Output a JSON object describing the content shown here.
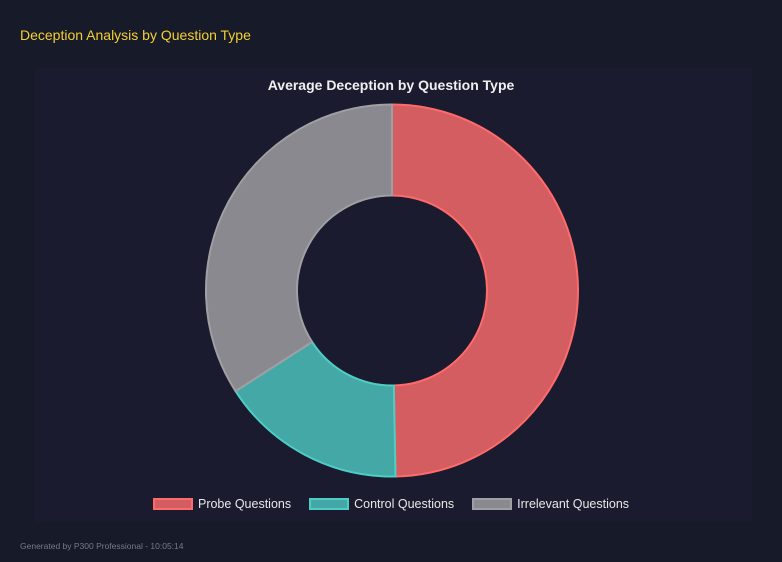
{
  "header": {
    "title": "Deception Analysis by Question Type"
  },
  "footer": {
    "text": "Generated by P300 Professional - 10:05:14"
  },
  "chart_data": {
    "type": "pie",
    "variant": "doughnut",
    "title": "Average Deception by Question Type",
    "categories": [
      "Probe Questions",
      "Control Questions",
      "Irrelevant Questions"
    ],
    "values": [
      49.7,
      16.2,
      34.1
    ],
    "colors": [
      {
        "fill": "#d35d61",
        "border": "#ff6b6b"
      },
      {
        "fill": "#44a8a6",
        "border": "#4ecdc4"
      },
      {
        "fill": "#8a898f",
        "border": "#a0a0a4"
      }
    ],
    "legend": "bottom"
  }
}
